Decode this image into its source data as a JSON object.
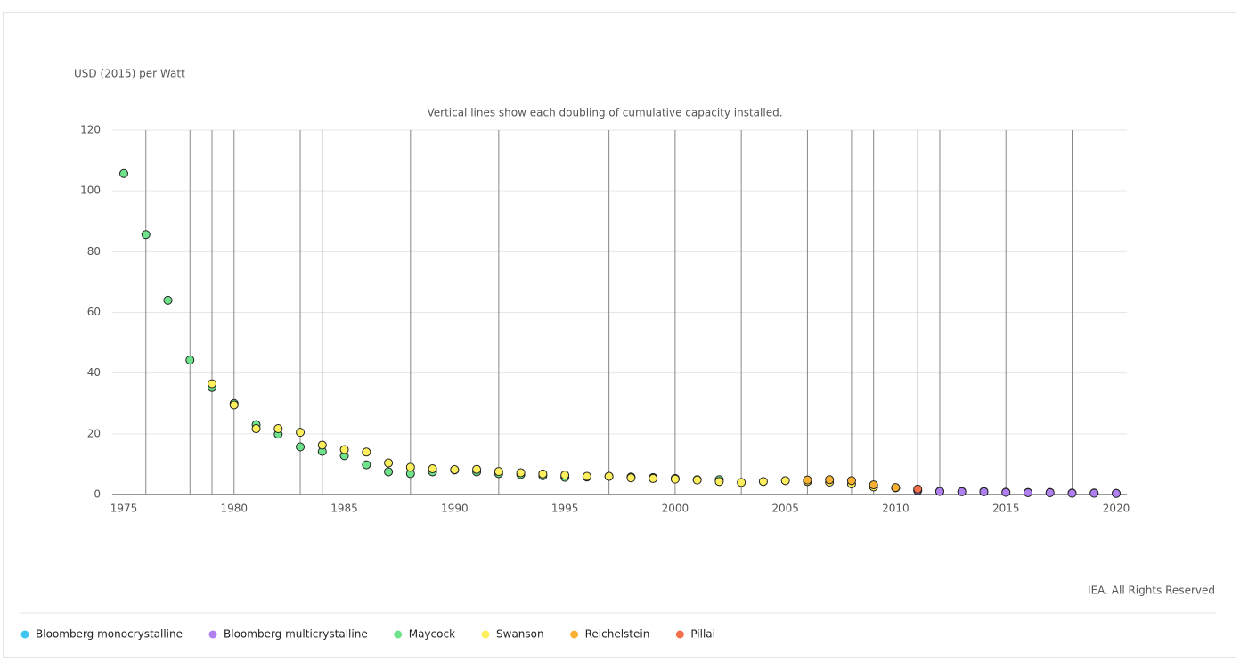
{
  "chart_data": {
    "type": "scatter",
    "y_label": "USD (2015) per Watt",
    "subtitle": "Vertical lines show each doubling of cumulative capacity installed.",
    "source": "IEA. All Rights Reserved",
    "xlim": [
      1975,
      2020
    ],
    "xticks": [
      1975,
      1980,
      1985,
      1990,
      1995,
      2000,
      2005,
      2010,
      2015,
      2020
    ],
    "ylim": [
      0,
      120
    ],
    "yticks": [
      0,
      20,
      40,
      60,
      80,
      100,
      120
    ],
    "grid": true,
    "doubling_years": [
      1976,
      1978,
      1979,
      1980,
      1983,
      1984,
      1988,
      1992,
      1997,
      2000,
      2003,
      2006,
      2008,
      2009,
      2011,
      2012,
      2015,
      2018
    ],
    "series": [
      {
        "name": "Bloomberg monocrystalline",
        "color": "#3ec6f0",
        "x": [
          2011,
          2012,
          2013,
          2014,
          2015,
          2016,
          2017,
          2018,
          2019,
          2020
        ],
        "values": [
          1.4,
          1.1,
          1.0,
          1.0,
          0.8,
          0.7,
          0.7,
          0.5,
          0.5,
          0.4
        ]
      },
      {
        "name": "Bloomberg multicrystalline",
        "color": "#b07ff0",
        "x": [
          2011,
          2012,
          2013,
          2014,
          2015,
          2016,
          2017,
          2018,
          2019,
          2020
        ],
        "values": [
          1.3,
          1.0,
          0.9,
          0.9,
          0.7,
          0.6,
          0.6,
          0.4,
          0.4,
          0.35
        ]
      },
      {
        "name": "Maycock",
        "color": "#6ee38c",
        "x": [
          1975,
          1976,
          1977,
          1978,
          1979,
          1980,
          1981,
          1982,
          1983,
          1984,
          1985,
          1986,
          1987,
          1988,
          1989,
          1990,
          1991,
          1992,
          1993,
          1994,
          1995,
          1996,
          1997,
          1998,
          1999,
          2000,
          2001,
          2002
        ],
        "values": [
          105.7,
          85.6,
          64,
          44.3,
          35.3,
          30,
          23,
          19.9,
          15.7,
          14.2,
          12.8,
          9.8,
          7.5,
          6.9,
          7.5,
          8.1,
          7.5,
          6.9,
          6.6,
          6.2,
          5.7,
          5.8,
          6.0,
          5.8,
          5.6,
          5.3,
          4.9,
          4.9
        ]
      },
      {
        "name": "Swanson",
        "color": "#fdf05c",
        "x": [
          1979,
          1980,
          1981,
          1982,
          1983,
          1984,
          1985,
          1986,
          1987,
          1988,
          1989,
          1990,
          1991,
          1992,
          1993,
          1994,
          1995,
          1996,
          1997,
          1998,
          1999,
          2000,
          2001,
          2002,
          2003,
          2004,
          2005,
          2006,
          2007,
          2008,
          2009,
          2010
        ],
        "values": [
          36.5,
          29.5,
          21.7,
          21.7,
          20.5,
          16.3,
          14.8,
          14,
          10.4,
          9,
          8.5,
          8.2,
          8.3,
          7.6,
          7.2,
          6.8,
          6.4,
          6.0,
          6.0,
          5.5,
          5.3,
          5.1,
          4.8,
          4.3,
          4.0,
          4.3,
          4.6,
          4.3,
          4.1,
          3.5,
          2.5,
          2.2
        ]
      },
      {
        "name": "Reichelstein",
        "color": "#f8b133",
        "x": [
          2006,
          2007,
          2008,
          2009,
          2010
        ],
        "values": [
          4.8,
          4.9,
          4.6,
          3.2,
          2.3
        ]
      },
      {
        "name": "Pillai",
        "color": "#f3704c",
        "x": [
          2011
        ],
        "values": [
          1.8
        ]
      }
    ]
  }
}
